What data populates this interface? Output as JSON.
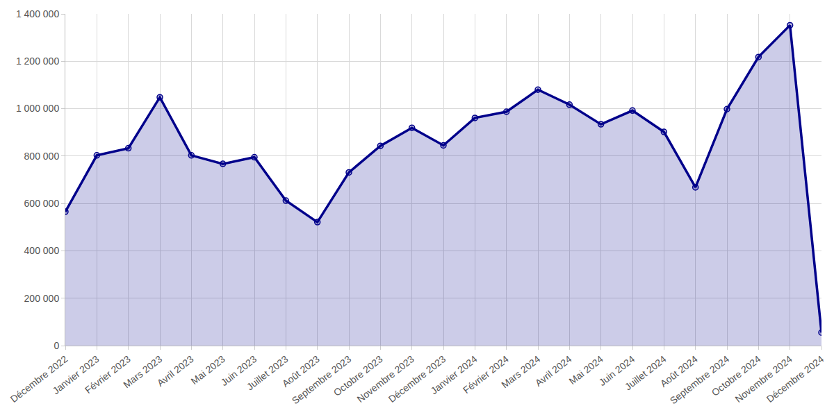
{
  "chart_data": {
    "type": "area",
    "categories": [
      "Décembre 2022",
      "Janvier 2023",
      "Février 2023",
      "Mars 2023",
      "Avril 2023",
      "Mai 2023",
      "Juin 2023",
      "Juillet 2023",
      "Août 2023",
      "Septembre 2023",
      "Octobre 2023",
      "Novembre 2023",
      "Décembre 2023",
      "Janvier 2024",
      "Février 2024",
      "Mars 2024",
      "Avril 2024",
      "Mai 2024",
      "Juin 2024",
      "Juillet 2024",
      "Août 2024",
      "Septembre 2024",
      "Octobre 2024",
      "Novembre 2024",
      "Décembre 2024"
    ],
    "values": [
      565000,
      803000,
      833000,
      1048000,
      803000,
      767000,
      795000,
      612000,
      521000,
      731000,
      843000,
      919000,
      845000,
      961000,
      987000,
      1080000,
      1017000,
      934000,
      992000,
      902000,
      668000,
      998000,
      1218000,
      1352000,
      55000
    ],
    "color": "#00008b",
    "marker": "circle",
    "ylim": [
      0,
      1400000
    ],
    "yticks": [
      0,
      {
        "value": 200000,
        "label": "200 000"
      },
      {
        "value": 400000,
        "label": "400 000"
      },
      {
        "value": 600000,
        "label": "600 000"
      },
      {
        "value": 800000,
        "label": "800 000"
      },
      {
        "value": 1000000,
        "label": "1 000 000"
      },
      {
        "value": 1200000,
        "label": "1 200 000"
      },
      {
        "value": 1400000,
        "label": "1 400 000"
      }
    ],
    "grid": true
  }
}
